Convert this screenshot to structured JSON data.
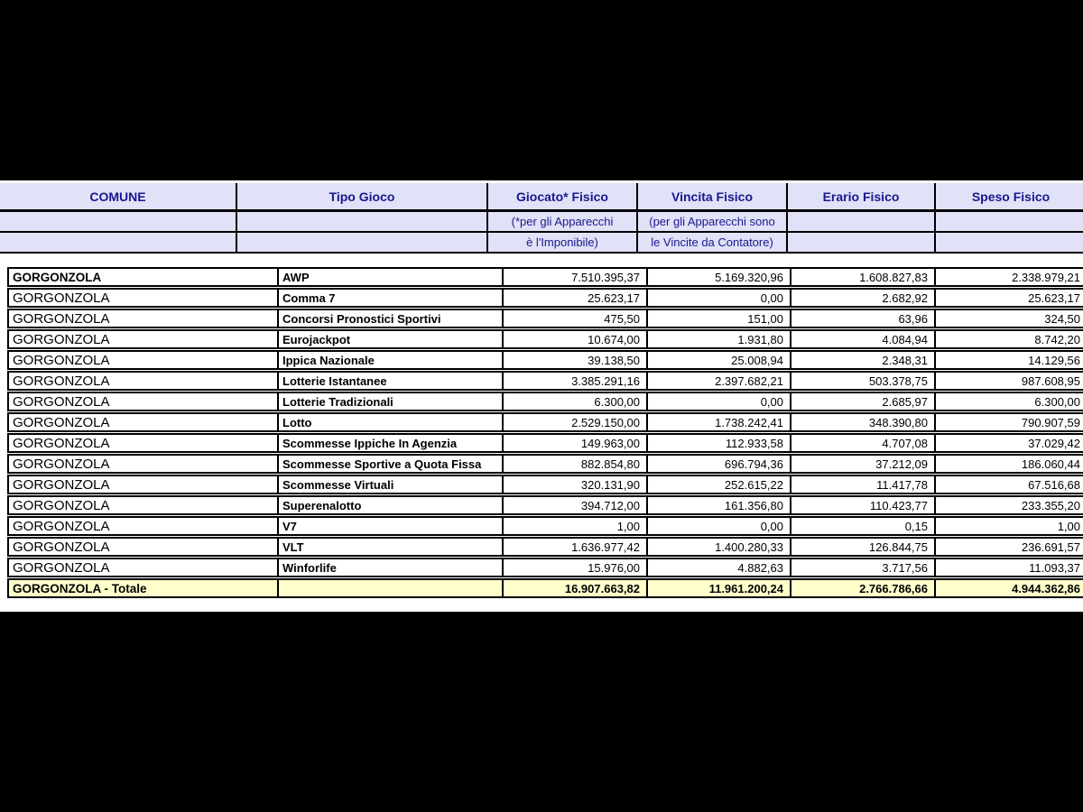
{
  "header": {
    "columns": [
      {
        "label": "COMUNE",
        "sub1": "",
        "sub2": ""
      },
      {
        "label": "Tipo Gioco",
        "sub1": "",
        "sub2": ""
      },
      {
        "label": "Giocato* Fisico",
        "sub1": "(*per gli Apparecchi",
        "sub2": "è l'Imponibile)"
      },
      {
        "label": "Vincita Fisico",
        "sub1": "(per gli Apparecchi sono",
        "sub2": "le Vincite da Contatore)"
      },
      {
        "label": "Erario Fisico",
        "sub1": "",
        "sub2": ""
      },
      {
        "label": "Speso Fisico",
        "sub1": "",
        "sub2": ""
      }
    ]
  },
  "table": {
    "rows": [
      {
        "comune": "GORGONZOLA",
        "tipo": "AWP",
        "giocato": "7.510.395,37",
        "vincita": "5.169.320,96",
        "erario": "1.608.827,83",
        "speso": "2.338.979,21"
      },
      {
        "comune": "GORGONZOLA",
        "tipo": "Comma 7",
        "giocato": "25.623,17",
        "vincita": "0,00",
        "erario": "2.682,92",
        "speso": "25.623,17"
      },
      {
        "comune": "GORGONZOLA",
        "tipo": "Concorsi Pronostici Sportivi",
        "giocato": "475,50",
        "vincita": "151,00",
        "erario": "63,96",
        "speso": "324,50"
      },
      {
        "comune": "GORGONZOLA",
        "tipo": "Eurojackpot",
        "giocato": "10.674,00",
        "vincita": "1.931,80",
        "erario": "4.084,94",
        "speso": "8.742,20"
      },
      {
        "comune": "GORGONZOLA",
        "tipo": "Ippica Nazionale",
        "giocato": "39.138,50",
        "vincita": "25.008,94",
        "erario": "2.348,31",
        "speso": "14.129,56"
      },
      {
        "comune": "GORGONZOLA",
        "tipo": "Lotterie Istantanee",
        "giocato": "3.385.291,16",
        "vincita": "2.397.682,21",
        "erario": "503.378,75",
        "speso": "987.608,95"
      },
      {
        "comune": "GORGONZOLA",
        "tipo": "Lotterie Tradizionali",
        "giocato": "6.300,00",
        "vincita": "0,00",
        "erario": "2.685,97",
        "speso": "6.300,00"
      },
      {
        "comune": "GORGONZOLA",
        "tipo": "Lotto",
        "giocato": "2.529.150,00",
        "vincita": "1.738.242,41",
        "erario": "348.390,80",
        "speso": "790.907,59"
      },
      {
        "comune": "GORGONZOLA",
        "tipo": "Scommesse Ippiche In Agenzia",
        "giocato": "149.963,00",
        "vincita": "112.933,58",
        "erario": "4.707,08",
        "speso": "37.029,42"
      },
      {
        "comune": "GORGONZOLA",
        "tipo": "Scommesse Sportive a Quota Fissa",
        "giocato": "882.854,80",
        "vincita": "696.794,36",
        "erario": "37.212,09",
        "speso": "186.060,44"
      },
      {
        "comune": "GORGONZOLA",
        "tipo": "Scommesse Virtuali",
        "giocato": "320.131,90",
        "vincita": "252.615,22",
        "erario": "11.417,78",
        "speso": "67.516,68"
      },
      {
        "comune": "GORGONZOLA",
        "tipo": "Superenalotto",
        "giocato": "394.712,00",
        "vincita": "161.356,80",
        "erario": "110.423,77",
        "speso": "233.355,20"
      },
      {
        "comune": "GORGONZOLA",
        "tipo": "V7",
        "giocato": "1,00",
        "vincita": "0,00",
        "erario": "0,15",
        "speso": "1,00"
      },
      {
        "comune": "GORGONZOLA",
        "tipo": "VLT",
        "giocato": "1.636.977,42",
        "vincita": "1.400.280,33",
        "erario": "126.844,75",
        "speso": "236.691,57"
      },
      {
        "comune": "GORGONZOLA",
        "tipo": "Winforlife",
        "giocato": "15.976,00",
        "vincita": "4.882,63",
        "erario": "3.717,56",
        "speso": "11.093,37"
      }
    ],
    "total": {
      "label": "GORGONZOLA - Totale",
      "tipo": "",
      "giocato": "16.907.663,82",
      "vincita": "11.961.200,24",
      "erario": "2.766.786,66",
      "speso": "4.944.362,86"
    }
  },
  "colors": {
    "header_bg": "#e1e1f7",
    "header_text": "#181890",
    "total_row_bg": "#ffffcc",
    "border": "#000000",
    "letterbox": "#000000"
  }
}
